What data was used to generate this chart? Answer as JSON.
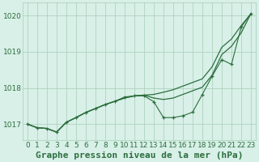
{
  "bg_color": "#d8f0e8",
  "grid_color": "#a8cdb8",
  "line_color": "#2d6e3e",
  "title": "Graphe pression niveau de la mer (hPa)",
  "xlabel_ticks": [
    0,
    1,
    2,
    3,
    4,
    5,
    6,
    7,
    8,
    9,
    10,
    11,
    12,
    13,
    14,
    15,
    16,
    17,
    18,
    19,
    20,
    21,
    22,
    23
  ],
  "yticks": [
    1017,
    1018,
    1019,
    1020
  ],
  "ylim": [
    1016.55,
    1020.35
  ],
  "xlim": [
    -0.5,
    23.5
  ],
  "series1": [
    1017.0,
    1016.9,
    1016.88,
    1016.78,
    1017.05,
    1017.18,
    1017.32,
    1017.43,
    1017.54,
    1017.63,
    1017.72,
    1017.78,
    1017.8,
    1017.82,
    1017.88,
    1017.95,
    1018.05,
    1018.15,
    1018.25,
    1018.58,
    1019.12,
    1019.35,
    1019.72,
    1020.05
  ],
  "series2": [
    1017.0,
    1016.9,
    1016.88,
    1016.78,
    1017.05,
    1017.18,
    1017.32,
    1017.43,
    1017.54,
    1017.63,
    1017.72,
    1017.78,
    1017.8,
    1017.72,
    1017.68,
    1017.72,
    1017.82,
    1017.92,
    1018.02,
    1018.35,
    1018.92,
    1019.15,
    1019.52,
    1020.05
  ],
  "series3": [
    1017.0,
    1016.9,
    1016.88,
    1016.78,
    1017.05,
    1017.18,
    1017.32,
    1017.43,
    1017.54,
    1017.63,
    1017.75,
    1017.78,
    1017.78,
    1017.62,
    1017.18,
    1017.18,
    1017.23,
    1017.33,
    1017.82,
    1018.32,
    1018.78,
    1018.65,
    1019.68,
    1020.05
  ],
  "title_fontsize": 8,
  "tick_fontsize": 6.5,
  "figsize": [
    3.2,
    2.0
  ],
  "dpi": 100
}
